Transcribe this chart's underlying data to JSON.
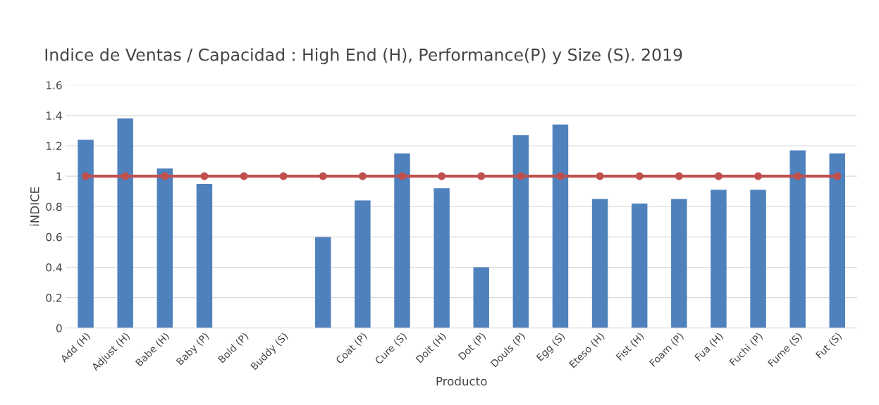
{
  "chart_data": {
    "type": "bar",
    "title": "Indice de Ventas / Capacidad : High End (H), Performance(P) y Size (S). 2019",
    "xlabel": "Producto",
    "ylabel": "iNDICE",
    "categories": [
      "Add (H)",
      "Adjust (H)",
      "Babe (H)",
      "Baby (P)",
      "Bold (P)",
      "Buddy (S)",
      null,
      "Coat (P)",
      "Cure (S)",
      "Doit (H)",
      "Dot (P)",
      "Douls (P)",
      "Egg (S)",
      "Eteso (H)",
      "Fist (H)",
      "Foam (P)",
      "Fua (H)",
      "Fuchi (P)",
      "Fume (S)",
      "Fut (S)"
    ],
    "series": [
      {
        "color": "#4f81bd",
        "values": [
          1.24,
          1.38,
          1.05,
          0.95,
          null,
          null,
          0.6,
          0.84,
          1.15,
          0.92,
          0.4,
          1.27,
          1.34,
          0.85,
          0.82,
          0.85,
          0.91,
          0.91,
          1.17,
          1.15
        ]
      },
      {
        "type": "line",
        "color": "#c0504d",
        "marker": "circle",
        "values": [
          1,
          1,
          1,
          1,
          1,
          1,
          1,
          1,
          1,
          1,
          1,
          1,
          1,
          1,
          1,
          1,
          1,
          1,
          1,
          1
        ]
      }
    ],
    "ylim": [
      0,
      1.6
    ],
    "yticks": [
      0,
      0.2,
      0.4,
      0.6,
      0.8,
      1,
      1.2,
      1.4,
      1.6
    ],
    "grid": "y"
  }
}
